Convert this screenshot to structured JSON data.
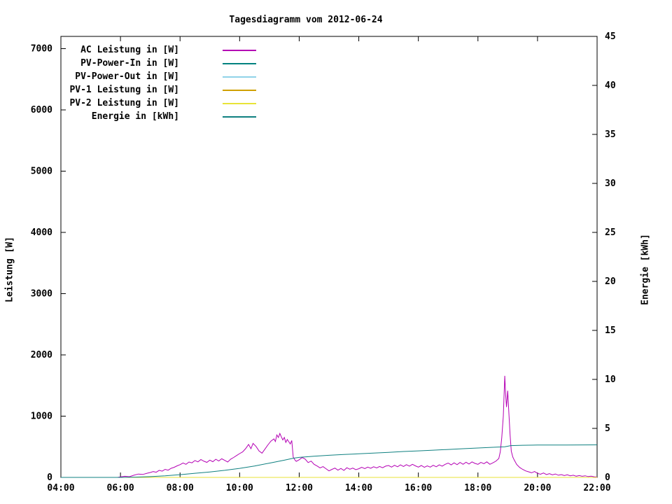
{
  "page": {
    "background": "#ffffff"
  },
  "chart_data": {
    "type": "line",
    "title": "Tagesdiagramm vom 2012-06-24",
    "grid": false,
    "legend_position": "top-left-inside",
    "x_axis": {
      "range": [
        4,
        22
      ],
      "ticks": [
        {
          "value": 4,
          "label": "04:00"
        },
        {
          "value": 6,
          "label": "06:00"
        },
        {
          "value": 8,
          "label": "08:00"
        },
        {
          "value": 10,
          "label": "10:00"
        },
        {
          "value": 12,
          "label": "12:00"
        },
        {
          "value": 14,
          "label": "14:00"
        },
        {
          "value": 16,
          "label": "16:00"
        },
        {
          "value": 18,
          "label": "18:00"
        },
        {
          "value": 20,
          "label": "20:00"
        },
        {
          "value": 22,
          "label": "22:00"
        }
      ]
    },
    "y_left": {
      "label": "Leistung [W]",
      "range": [
        0,
        7200
      ],
      "ticks": [
        0,
        1000,
        2000,
        3000,
        4000,
        5000,
        6000,
        7000
      ]
    },
    "y_right": {
      "label": "Energie [kWh]",
      "range": [
        0,
        45
      ],
      "ticks": [
        0,
        5,
        10,
        15,
        20,
        25,
        30,
        35,
        40,
        45
      ]
    },
    "series": [
      {
        "name": "AC Leistung in [W]",
        "color": "#b400b4",
        "axis": "left",
        "points": [
          [
            4,
            0
          ],
          [
            5.9,
            0
          ],
          [
            6,
            8
          ],
          [
            6.15,
            18
          ],
          [
            6.3,
            12
          ],
          [
            6.45,
            35
          ],
          [
            6.6,
            55
          ],
          [
            6.75,
            48
          ],
          [
            6.9,
            68
          ],
          [
            7,
            80
          ],
          [
            7.1,
            95
          ],
          [
            7.2,
            85
          ],
          [
            7.3,
            115
          ],
          [
            7.4,
            102
          ],
          [
            7.5,
            132
          ],
          [
            7.6,
            118
          ],
          [
            7.7,
            148
          ],
          [
            7.8,
            165
          ],
          [
            7.9,
            188
          ],
          [
            8,
            208
          ],
          [
            8.1,
            236
          ],
          [
            8.2,
            214
          ],
          [
            8.3,
            252
          ],
          [
            8.4,
            238
          ],
          [
            8.5,
            276
          ],
          [
            8.6,
            254
          ],
          [
            8.7,
            292
          ],
          [
            8.8,
            264
          ],
          [
            8.9,
            246
          ],
          [
            9,
            282
          ],
          [
            9.1,
            256
          ],
          [
            9.2,
            296
          ],
          [
            9.3,
            268
          ],
          [
            9.4,
            304
          ],
          [
            9.5,
            278
          ],
          [
            9.6,
            252
          ],
          [
            9.7,
            298
          ],
          [
            9.8,
            326
          ],
          [
            9.9,
            358
          ],
          [
            10,
            388
          ],
          [
            10.1,
            416
          ],
          [
            10.2,
            468
          ],
          [
            10.3,
            538
          ],
          [
            10.38,
            468
          ],
          [
            10.45,
            556
          ],
          [
            10.55,
            506
          ],
          [
            10.65,
            432
          ],
          [
            10.75,
            396
          ],
          [
            10.85,
            462
          ],
          [
            10.95,
            532
          ],
          [
            11.05,
            592
          ],
          [
            11.15,
            628
          ],
          [
            11.2,
            586
          ],
          [
            11.25,
            694
          ],
          [
            11.3,
            652
          ],
          [
            11.35,
            718
          ],
          [
            11.4,
            662
          ],
          [
            11.45,
            612
          ],
          [
            11.5,
            652
          ],
          [
            11.55,
            572
          ],
          [
            11.6,
            618
          ],
          [
            11.65,
            582
          ],
          [
            11.7,
            546
          ],
          [
            11.75,
            602
          ],
          [
            11.8,
            332
          ],
          [
            11.85,
            288
          ],
          [
            11.9,
            262
          ],
          [
            12,
            288
          ],
          [
            12.1,
            326
          ],
          [
            12.2,
            298
          ],
          [
            12.3,
            242
          ],
          [
            12.4,
            266
          ],
          [
            12.5,
            214
          ],
          [
            12.6,
            186
          ],
          [
            12.7,
            156
          ],
          [
            12.8,
            176
          ],
          [
            12.9,
            142
          ],
          [
            13,
            106
          ],
          [
            13.1,
            132
          ],
          [
            13.2,
            152
          ],
          [
            13.3,
            118
          ],
          [
            13.4,
            146
          ],
          [
            13.5,
            114
          ],
          [
            13.6,
            158
          ],
          [
            13.7,
            134
          ],
          [
            13.8,
            152
          ],
          [
            13.9,
            126
          ],
          [
            14,
            142
          ],
          [
            14.1,
            164
          ],
          [
            14.2,
            144
          ],
          [
            14.3,
            168
          ],
          [
            14.4,
            148
          ],
          [
            14.5,
            174
          ],
          [
            14.6,
            154
          ],
          [
            14.7,
            178
          ],
          [
            14.8,
            158
          ],
          [
            14.9,
            184
          ],
          [
            15,
            194
          ],
          [
            15.1,
            168
          ],
          [
            15.2,
            198
          ],
          [
            15.3,
            174
          ],
          [
            15.4,
            204
          ],
          [
            15.5,
            178
          ],
          [
            15.6,
            208
          ],
          [
            15.7,
            184
          ],
          [
            15.8,
            214
          ],
          [
            15.9,
            188
          ],
          [
            16,
            168
          ],
          [
            16.1,
            194
          ],
          [
            16.2,
            164
          ],
          [
            16.3,
            188
          ],
          [
            16.4,
            168
          ],
          [
            16.5,
            198
          ],
          [
            16.6,
            174
          ],
          [
            16.7,
            204
          ],
          [
            16.8,
            184
          ],
          [
            16.9,
            214
          ],
          [
            17,
            234
          ],
          [
            17.1,
            204
          ],
          [
            17.2,
            238
          ],
          [
            17.3,
            208
          ],
          [
            17.4,
            244
          ],
          [
            17.5,
            214
          ],
          [
            17.6,
            248
          ],
          [
            17.7,
            218
          ],
          [
            17.8,
            254
          ],
          [
            17.9,
            228
          ],
          [
            18,
            214
          ],
          [
            18.1,
            244
          ],
          [
            18.2,
            224
          ],
          [
            18.3,
            254
          ],
          [
            18.4,
            214
          ],
          [
            18.5,
            238
          ],
          [
            18.6,
            264
          ],
          [
            18.7,
            308
          ],
          [
            18.75,
            418
          ],
          [
            18.8,
            648
          ],
          [
            18.85,
            996
          ],
          [
            18.9,
            1658
          ],
          [
            18.93,
            1342
          ],
          [
            18.96,
            1148
          ],
          [
            19,
            1416
          ],
          [
            19.04,
            1044
          ],
          [
            19.08,
            696
          ],
          [
            19.12,
            428
          ],
          [
            19.17,
            332
          ],
          [
            19.22,
            282
          ],
          [
            19.3,
            212
          ],
          [
            19.4,
            162
          ],
          [
            19.5,
            132
          ],
          [
            19.6,
            106
          ],
          [
            19.7,
            92
          ],
          [
            19.8,
            76
          ],
          [
            19.9,
            96
          ],
          [
            20,
            66
          ],
          [
            20.1,
            52
          ],
          [
            20.2,
            72
          ],
          [
            20.3,
            46
          ],
          [
            20.4,
            62
          ],
          [
            20.5,
            42
          ],
          [
            20.6,
            56
          ],
          [
            20.7,
            36
          ],
          [
            20.8,
            46
          ],
          [
            20.9,
            30
          ],
          [
            21,
            42
          ],
          [
            21.1,
            26
          ],
          [
            21.2,
            36
          ],
          [
            21.3,
            20
          ],
          [
            21.4,
            30
          ],
          [
            21.5,
            18
          ],
          [
            21.6,
            26
          ],
          [
            21.7,
            14
          ],
          [
            21.8,
            20
          ],
          [
            21.9,
            10
          ],
          [
            22,
            6
          ]
        ]
      },
      {
        "name": "PV-Power-In in [W]",
        "color": "#00827f",
        "axis": "left",
        "points": [
          [
            4,
            0
          ],
          [
            22,
            0
          ]
        ]
      },
      {
        "name": "PV-Power-Out in [W]",
        "color": "#8fd3e8",
        "axis": "left",
        "points": [
          [
            4,
            0
          ],
          [
            22,
            0
          ]
        ]
      },
      {
        "name": "PV-1 Leistung in [W]",
        "color": "#cfa000",
        "axis": "left",
        "points": [
          [
            4,
            0
          ],
          [
            22,
            0
          ]
        ]
      },
      {
        "name": "PV-2 Leistung in [W]",
        "color": "#e8e337",
        "axis": "left",
        "points": [
          [
            4,
            0
          ],
          [
            22,
            0
          ]
        ]
      },
      {
        "name": "Energie in [kWh]",
        "color": "#0f8080",
        "axis": "right",
        "points": [
          [
            4,
            0
          ],
          [
            6,
            0
          ],
          [
            6.5,
            0.03
          ],
          [
            7,
            0.08
          ],
          [
            7.5,
            0.16
          ],
          [
            8,
            0.28
          ],
          [
            8.5,
            0.42
          ],
          [
            9,
            0.56
          ],
          [
            9.5,
            0.72
          ],
          [
            10,
            0.92
          ],
          [
            10.5,
            1.16
          ],
          [
            11,
            1.46
          ],
          [
            11.5,
            1.76
          ],
          [
            11.8,
            1.96
          ],
          [
            12,
            2.04
          ],
          [
            12.5,
            2.16
          ],
          [
            13,
            2.26
          ],
          [
            13.5,
            2.34
          ],
          [
            14,
            2.41
          ],
          [
            14.5,
            2.48
          ],
          [
            15,
            2.56
          ],
          [
            15.5,
            2.64
          ],
          [
            16,
            2.71
          ],
          [
            16.5,
            2.78
          ],
          [
            17,
            2.85
          ],
          [
            17.5,
            2.93
          ],
          [
            18,
            3.0
          ],
          [
            18.5,
            3.07
          ],
          [
            18.9,
            3.13
          ],
          [
            19.1,
            3.24
          ],
          [
            19.5,
            3.28
          ],
          [
            20,
            3.3
          ],
          [
            21,
            3.31
          ],
          [
            22,
            3.32
          ]
        ]
      }
    ]
  }
}
